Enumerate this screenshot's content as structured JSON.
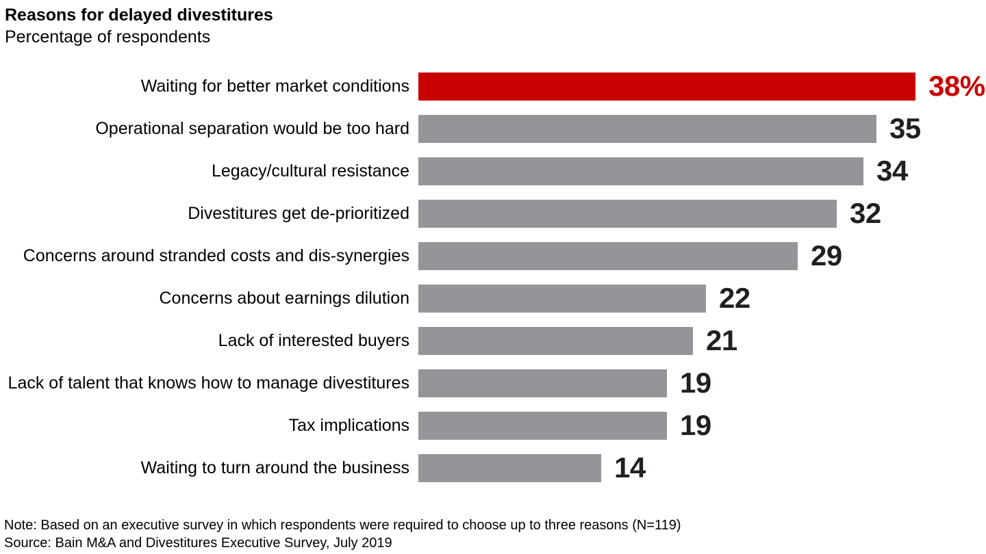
{
  "header": {
    "title": "Reasons for delayed divestitures",
    "subtitle": "Percentage of respondents"
  },
  "chart_data": {
    "type": "bar",
    "orientation": "horizontal",
    "title": "Reasons for delayed divestitures",
    "subtitle": "Percentage of respondents",
    "xlabel": "",
    "ylabel": "",
    "xlim": [
      0,
      38
    ],
    "grid": false,
    "legend": false,
    "categories": [
      "Waiting for better market conditions",
      "Operational separation would be too hard",
      "Legacy/cultural resistance",
      "Divestitures get de-prioritized",
      "Concerns around stranded costs and dis-synergies",
      "Concerns about earnings dilution",
      "Lack of interested buyers",
      "Lack of talent that knows how to manage divestitures",
      "Tax implications",
      "Waiting to turn around the business"
    ],
    "values": [
      38,
      35,
      34,
      32,
      29,
      22,
      21,
      19,
      19,
      14
    ],
    "value_labels": [
      "38%",
      "35",
      "34",
      "32",
      "29",
      "22",
      "21",
      "19",
      "19",
      "14"
    ],
    "highlight_index": 0,
    "colors": {
      "highlight_bar": "#c90000",
      "default_bar": "#939598",
      "highlight_value_text": "#c90000",
      "default_value_text": "#231f20",
      "label_text": "#000000"
    }
  },
  "footer": {
    "note": "Note: Based on an executive survey in which respondents were required to choose up to three reasons (N=119)",
    "source": "Source: Bain M&A and Divestitures Executive Survey, July 2019"
  }
}
